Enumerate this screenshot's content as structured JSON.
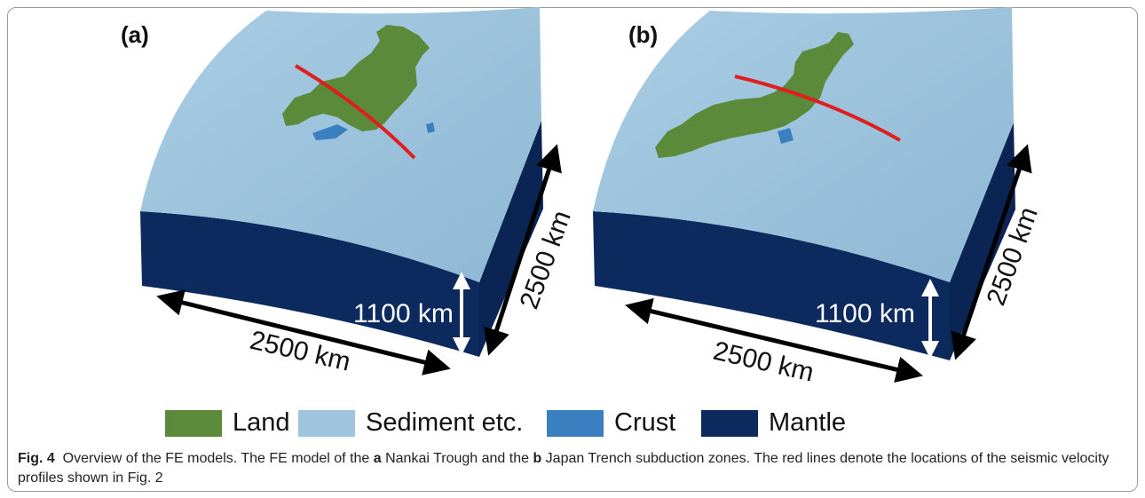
{
  "panels": [
    {
      "label": "(a)",
      "width_label": "2500 km",
      "depth_label": "2500 km",
      "height_label": "1100 km"
    },
    {
      "label": "(b)",
      "width_label": "2500 km",
      "depth_label": "2500 km",
      "height_label": "1100 km"
    }
  ],
  "legend": [
    {
      "label": "Land",
      "color": "#5a8a3a"
    },
    {
      "label": "Sediment etc.",
      "color": "#9ec4de"
    },
    {
      "label": "Crust",
      "color": "#3a80c0"
    },
    {
      "label": "Mantle",
      "color": "#0d2a5e"
    }
  ],
  "caption": {
    "fig_label": "Fig. 4",
    "part1": "Overview of the FE models. The FE model of the ",
    "letter_a": "a",
    "part2": " Nankai Trough and the ",
    "letter_b": "b",
    "part3": " Japan Trench subduction zones. The red lines denote the locations of the seismic velocity profiles shown in Fig. 2"
  },
  "colors": {
    "profile_line": "#e01e1e",
    "top_surface": "#9ec4de",
    "side": "#0d2a5e"
  }
}
